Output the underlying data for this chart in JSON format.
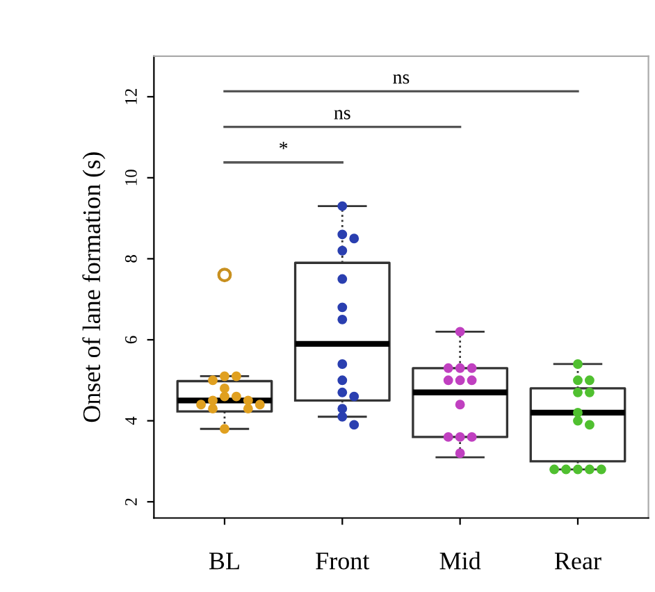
{
  "chart_data": {
    "type": "box",
    "ylabel": "Onset of lane formation (s)",
    "categories": [
      "BL",
      "Front",
      "Mid",
      "Rear"
    ],
    "boxes": [
      {
        "low": 3.8,
        "q1": 4.23,
        "median": 4.5,
        "q3": 4.98,
        "high": 5.1,
        "outliers": [
          7.6
        ]
      },
      {
        "low": 4.1,
        "q1": 4.5,
        "median": 5.9,
        "q3": 7.9,
        "high": 9.3
      },
      {
        "low": 3.1,
        "q1": 3.6,
        "median": 4.7,
        "q3": 5.3,
        "high": 6.2
      },
      {
        "low": 2.8,
        "q1": 3.0,
        "median": 4.2,
        "q3": 4.8,
        "high": 5.4
      }
    ],
    "series": [
      {
        "type": "scatter",
        "color": "#e0a020",
        "x": [
          "BL",
          "BL",
          "BL",
          "BL",
          "BL",
          "BL",
          "BL",
          "BL",
          "BL",
          "BL",
          "BL",
          "BL",
          "BL"
        ],
        "values": [
          5.1,
          5.1,
          5.0,
          4.8,
          4.6,
          4.6,
          4.5,
          4.5,
          4.4,
          4.4,
          4.3,
          4.3,
          3.8
        ]
      },
      {
        "type": "scatter",
        "color": "#2a3fb0",
        "x": [
          "Front",
          "Front",
          "Front",
          "Front",
          "Front",
          "Front",
          "Front",
          "Front",
          "Front",
          "Front",
          "Front",
          "Front",
          "Front",
          "Front"
        ],
        "values": [
          9.3,
          8.6,
          8.5,
          8.2,
          7.5,
          6.8,
          6.5,
          5.4,
          5.0,
          4.7,
          4.6,
          4.3,
          4.1,
          3.9
        ]
      },
      {
        "type": "scatter",
        "color": "#c040c0",
        "x": [
          "Mid",
          "Mid",
          "Mid",
          "Mid",
          "Mid",
          "Mid",
          "Mid",
          "Mid",
          "Mid",
          "Mid",
          "Mid",
          "Mid"
        ],
        "values": [
          6.2,
          5.3,
          5.3,
          5.3,
          5.0,
          5.0,
          5.0,
          4.4,
          3.6,
          3.6,
          3.6,
          3.2
        ]
      },
      {
        "type": "scatter",
        "color": "#50c030",
        "x": [
          "Rear",
          "Rear",
          "Rear",
          "Rear",
          "Rear",
          "Rear",
          "Rear",
          "Rear",
          "Rear",
          "Rear",
          "Rear",
          "Rear",
          "Rear"
        ],
        "values": [
          5.4,
          5.0,
          5.0,
          4.7,
          4.7,
          4.2,
          4.0,
          3.9,
          2.8,
          2.8,
          2.8,
          2.8,
          2.8
        ]
      }
    ],
    "annotations": [
      "*",
      "ns",
      "ns"
    ],
    "ylim": [
      1.6,
      13.0
    ],
    "yticks": [
      2,
      4,
      6,
      8,
      10,
      12
    ],
    "marker": "circle",
    "grid": false,
    "legend": false
  }
}
